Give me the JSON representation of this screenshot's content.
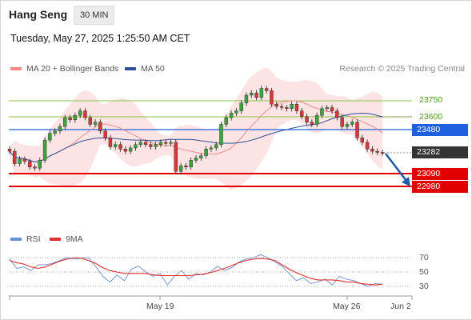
{
  "header": {
    "instrument": "Hang Seng",
    "interval": "30 MIN",
    "datetime": "Tuesday, May 27, 2025 1:25:50 AM CET"
  },
  "legend": {
    "bollinger_label": "MA 20 + Bollinger Bands",
    "ma50_label": "MA 50",
    "rsi_label": "RSI",
    "rsi_ma_label": "9MA",
    "credit": "Research © 2025 Trading Central"
  },
  "colors": {
    "bollinger": "#f08a8a",
    "band_fill": "#fde4e4",
    "ma50": "#2e4f96",
    "resistance": "#8cc63f",
    "pivot": "#1f5fdd",
    "support": "#e00000",
    "last_price_bg": "#333333",
    "arrow": "#1f5aa6",
    "rsi": "#6a8fd6",
    "rsi_ma": "#e03030"
  },
  "price_levels": [
    {
      "label": "23750",
      "type": "resistance"
    },
    {
      "label": "23600",
      "type": "resistance"
    },
    {
      "label": "23480",
      "type": "pivot"
    },
    {
      "label": "23282",
      "type": "last"
    },
    {
      "label": "23090",
      "type": "support"
    },
    {
      "label": "22980",
      "type": "support"
    }
  ],
  "rsi_ticks": [
    "70",
    "50",
    "30"
  ],
  "x_axis_labels": [
    "May 19",
    "May 26",
    "Jun 2"
  ],
  "chart_data": {
    "type": "candlestick",
    "instrument": "Hang Seng",
    "interval": "30 MIN",
    "last_price": 23282,
    "close_series": [
      23300,
      23190,
      23230,
      23210,
      23160,
      23150,
      23220,
      23400,
      23460,
      23480,
      23520,
      23600,
      23580,
      23620,
      23660,
      23600,
      23540,
      23560,
      23480,
      23420,
      23340,
      23360,
      23320,
      23300,
      23330,
      23360,
      23380,
      23360,
      23340,
      23360,
      23380,
      23370,
      23380,
      23120,
      23170,
      23160,
      23220,
      23240,
      23260,
      23320,
      23330,
      23360,
      23540,
      23600,
      23640,
      23660,
      23730,
      23800,
      23820,
      23780,
      23860,
      23840,
      23720,
      23700,
      23690,
      23680,
      23720,
      23660,
      23610,
      23560,
      23540,
      23620,
      23680,
      23690,
      23660,
      23600,
      23520,
      23540,
      23560,
      23420,
      23380,
      23320,
      23300,
      23290,
      23282
    ],
    "rsi": {
      "ticks": [
        70,
        50,
        30
      ],
      "rsi_values": [
        68,
        55,
        57,
        52,
        60,
        60,
        62,
        66,
        70,
        68,
        69,
        70,
        58,
        44,
        36,
        46,
        38,
        54,
        58,
        50,
        44,
        48,
        32,
        44,
        52,
        40,
        48,
        46,
        50,
        58,
        52,
        56,
        64,
        68,
        70,
        74,
        70,
        64,
        58,
        48,
        38,
        42,
        34,
        36,
        40,
        32,
        44,
        40,
        38,
        34,
        30,
        34,
        33
      ],
      "ma_values": [
        66,
        63,
        61,
        57,
        55,
        57,
        61,
        65,
        68,
        70,
        69,
        66,
        62,
        56,
        52,
        50,
        48,
        48,
        48,
        48,
        46,
        45,
        45,
        45,
        45,
        45,
        46,
        47,
        49,
        52,
        55,
        59,
        63,
        66,
        68,
        69,
        68,
        66,
        60,
        54,
        49,
        45,
        41,
        39,
        39,
        39,
        38,
        36,
        36,
        34,
        33,
        32,
        33
      ]
    },
    "forecast": "down toward 22980"
  }
}
